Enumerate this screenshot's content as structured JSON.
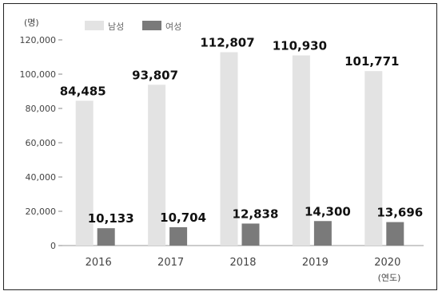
{
  "chart_data": {
    "type": "bar",
    "title": "",
    "ylabel": "(명)",
    "xlabel": "(연도)",
    "ylim": [
      0,
      120000
    ],
    "yticks": [
      "0",
      "20,000",
      "40,000",
      "60,000",
      "80,000",
      "100,000",
      "120,000"
    ],
    "categories": [
      "2016",
      "2017",
      "2018",
      "2019",
      "2020"
    ],
    "series": [
      {
        "name": "남성",
        "color": "#e3e3e3",
        "values": [
          84485,
          93807,
          112807,
          110930,
          101771
        ],
        "labels": [
          "84,485",
          "93,807",
          "112,807",
          "110,930",
          "101,771"
        ]
      },
      {
        "name": "여성",
        "color": "#7a7a7a",
        "values": [
          10133,
          10704,
          12838,
          14300,
          13696
        ],
        "labels": [
          "10,133",
          "10,704",
          "12,838",
          "14,300",
          "13,696"
        ]
      }
    ],
    "legend": "top-left",
    "grid": false
  }
}
